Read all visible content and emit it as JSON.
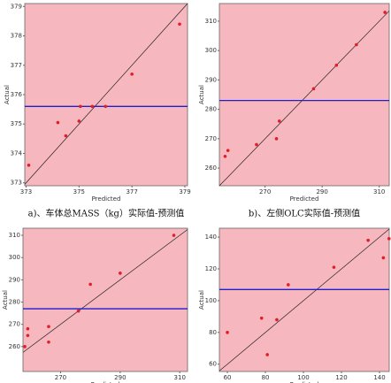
{
  "chart_data": [
    {
      "type": "scatter",
      "caption": "a)、车体总MASS（kg）实际值-预测值",
      "x_label": "Predicted",
      "y_label": "Actual",
      "x": [
        373.1,
        374.2,
        374.5,
        375.0,
        375.05,
        375.5,
        376.0,
        377.0,
        378.8
      ],
      "values": [
        373.6,
        375.05,
        374.6,
        375.1,
        375.6,
        375.6,
        375.6,
        376.7,
        378.4
      ],
      "mean_line": 375.6,
      "color": "#e01e28",
      "mean_color": "#1e1ed2",
      "xlim": [
        372.95,
        379.1
      ],
      "ylim": [
        372.9,
        379.1
      ],
      "xticks": [
        373,
        375,
        377,
        379
      ],
      "yticks": [
        373,
        374,
        375,
        376,
        377,
        378,
        379
      ]
    },
    {
      "type": "scatter",
      "caption": "b)、左侧OLC实际值-预测值",
      "x_label": "Predicted",
      "y_label": "Actual",
      "x": [
        256,
        257,
        267,
        274,
        275,
        287,
        295,
        302,
        312
      ],
      "values": [
        264,
        266,
        268,
        270,
        276,
        287,
        295,
        302,
        313
      ],
      "mean_line": 283,
      "color": "#e01e28",
      "mean_color": "#1e1ed2",
      "xlim": [
        254,
        313.5
      ],
      "ylim": [
        254,
        316
      ],
      "xticks": [
        270,
        290,
        310
      ],
      "yticks": [
        260,
        270,
        280,
        290,
        300,
        310
      ]
    },
    {
      "type": "scatter",
      "x_label": "Predicted",
      "y_label": "Actual",
      "x": [
        258,
        259,
        259,
        266,
        266,
        276,
        280,
        290,
        308
      ],
      "values": [
        260,
        265,
        268,
        262,
        269,
        276,
        288,
        293,
        310
      ],
      "mean_line": 277,
      "color": "#e01e28",
      "mean_color": "#1e1ed2",
      "xlim": [
        257.4,
        312.6
      ],
      "ylim": [
        248.8,
        313.2
      ],
      "xticks": [
        270,
        290,
        310
      ],
      "yticks": [
        260,
        270,
        280,
        290,
        300,
        310
      ]
    },
    {
      "type": "scatter",
      "x_label": "Predicted",
      "y_label": "Actual",
      "x": [
        60,
        78,
        81,
        86,
        92,
        116,
        134,
        142,
        145
      ],
      "values": [
        80,
        89,
        66,
        88,
        110,
        121,
        138,
        127,
        139
      ],
      "mean_line": 107,
      "color": "#e01e28",
      "mean_color": "#1e1ed2",
      "xlim": [
        55.8,
        145.1
      ],
      "ylim": [
        55.4,
        145.6
      ],
      "xticks": [
        60,
        80,
        100,
        120,
        140
      ],
      "yticks": [
        60,
        80,
        100,
        120,
        140
      ]
    }
  ]
}
